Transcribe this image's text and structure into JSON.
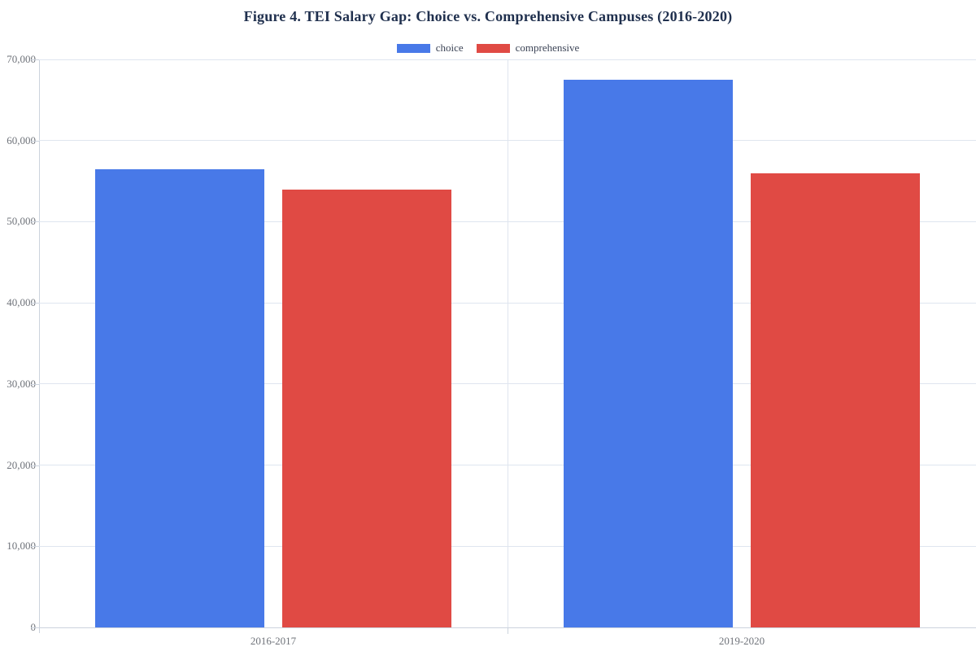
{
  "chart_data": {
    "type": "bar",
    "title": "Figure 4. TEI Salary Gap: Choice vs. Comprehensive Campuses (2016-2020)",
    "categories": [
      "2016-2017",
      "2019-2020"
    ],
    "series": [
      {
        "name": "choice",
        "color": "#4879e8",
        "values": [
          56500,
          67500
        ]
      },
      {
        "name": "comprehensive",
        "color": "#e04a44",
        "values": [
          54000,
          56000
        ]
      }
    ],
    "xlabel": "",
    "ylabel": "",
    "ylim": [
      0,
      70000
    ],
    "ytick_step": 10000,
    "ytick_labels": [
      "0",
      "10,000",
      "20,000",
      "30,000",
      "40,000",
      "50,000",
      "60,000",
      "70,000"
    ],
    "grid": true,
    "legend_position": "top-center"
  },
  "colors": {
    "title_text": "#20304e",
    "legend_text": "#3d4557",
    "tick_label_text": "#6f737a",
    "gridline": "#dfe5ef",
    "axis_line": "#ccd3dd",
    "background": "#ffffff"
  }
}
